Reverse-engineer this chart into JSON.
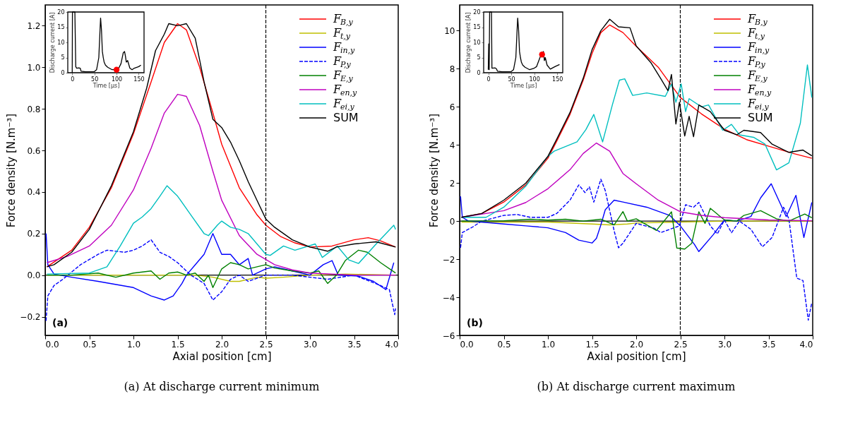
{
  "chart_data": [
    {
      "type": "line",
      "title": "(a) At discharge current minimum",
      "xlabel": "Axial position [cm]",
      "ylabel": "Force density [N.m⁻³]",
      "annotations": [
        "(a)"
      ],
      "legend": "top right",
      "xlim": [
        0,
        4
      ],
      "ylim": [
        -0.29,
        1.3
      ],
      "xticks": [
        {
          "value": 0,
          "label": "0.0"
        },
        0.5,
        {
          "value": 1,
          "label": "1.0"
        },
        1.5,
        {
          "value": 2,
          "label": "2.0"
        },
        2.5,
        {
          "value": 3,
          "label": "3.0"
        },
        3.5,
        {
          "value": 4,
          "label": "4.0"
        }
      ],
      "yticks": [
        {
          "value": -0.2,
          "label": "−0.2"
        },
        {
          "value": 0,
          "label": "0.0"
        },
        0.2,
        0.4,
        0.6,
        0.8,
        {
          "value": 1,
          "label": "1.0"
        },
        1.2
      ],
      "ref_lines": [
        {
          "axis": "x",
          "value": 2.5,
          "color": "#000000",
          "line_style": "dashed"
        },
        {
          "axis": "y",
          "value": 0,
          "color": "#000000"
        }
      ],
      "series": [
        {
          "name": "F$_{B,y}$",
          "color": "#ff0000",
          "x": [
            0.02,
            0.3,
            0.5,
            0.75,
            1.0,
            1.2,
            1.35,
            1.5,
            1.6,
            1.75,
            1.9,
            2.0,
            2.2,
            2.4,
            2.5,
            2.67,
            2.83,
            3.0,
            3.25,
            3.5,
            3.66,
            3.8,
            3.97
          ],
          "values": [
            0.04,
            0.12,
            0.23,
            0.42,
            0.68,
            0.93,
            1.12,
            1.21,
            1.18,
            1.0,
            0.78,
            0.63,
            0.42,
            0.29,
            0.24,
            0.185,
            0.155,
            0.135,
            0.14,
            0.17,
            0.18,
            0.165,
            0.135
          ]
        },
        {
          "name": "F$_{t,y}$",
          "color": "#bfbf00",
          "x": [
            0.02,
            0.5,
            1.0,
            1.5,
            1.7,
            1.9,
            2.1,
            2.2,
            2.4,
            2.5,
            2.7,
            3.0,
            3.4,
            3.97
          ],
          "values": [
            0.0,
            0.0,
            0.0,
            0.0,
            0.0,
            -0.01,
            -0.03,
            -0.03,
            -0.01,
            -0.015,
            -0.01,
            0.0,
            0.005,
            0.0
          ]
        },
        {
          "name": "F$_{in,y}$",
          "color": "#0000ff",
          "x": [
            0.01,
            0.03,
            0.1,
            0.3,
            0.6,
            1.0,
            1.2,
            1.35,
            1.45,
            1.55,
            1.6,
            1.7,
            1.8,
            1.9,
            1.95,
            2.0,
            2.1,
            2.2,
            2.3,
            2.35,
            2.5,
            2.6,
            2.8,
            3.0,
            3.15,
            3.25,
            3.32,
            3.55,
            3.72,
            3.86,
            3.95
          ],
          "values": [
            0.2,
            0.05,
            0.005,
            -0.01,
            -0.03,
            -0.06,
            -0.1,
            -0.12,
            -0.1,
            -0.04,
            0.0,
            0.05,
            0.1,
            0.2,
            0.15,
            0.1,
            0.1,
            0.05,
            0.08,
            0.0,
            0.03,
            0.04,
            0.02,
            0.0,
            0.05,
            0.07,
            0.0,
            -0.005,
            -0.03,
            -0.07,
            0.06
          ]
        },
        {
          "name": "F$_{P,y}$",
          "color": "#0000ff",
          "line_style": "dashed",
          "x": [
            0.01,
            0.03,
            0.1,
            0.2,
            0.4,
            0.6,
            0.7,
            0.9,
            1.0,
            1.1,
            1.2,
            1.3,
            1.4,
            1.5,
            1.65,
            1.8,
            1.9,
            2.0,
            2.1,
            2.2,
            2.3,
            2.5,
            2.8,
            3.0,
            3.2,
            3.5,
            3.8,
            3.9,
            3.94,
            3.96,
            3.97
          ],
          "values": [
            -0.22,
            -0.1,
            -0.05,
            -0.02,
            0.05,
            0.1,
            0.12,
            0.11,
            0.12,
            0.14,
            0.17,
            0.11,
            0.09,
            0.06,
            0.0,
            -0.04,
            -0.12,
            -0.08,
            -0.02,
            0.0,
            -0.03,
            0.0,
            0.0,
            -0.01,
            -0.02,
            0.0,
            -0.05,
            -0.07,
            -0.15,
            -0.19,
            -0.16
          ]
        },
        {
          "name": "F$_{E,y}$",
          "color": "#008000",
          "x": [
            0.02,
            0.3,
            0.6,
            0.8,
            1.0,
            1.2,
            1.3,
            1.4,
            1.5,
            1.6,
            1.7,
            1.8,
            1.85,
            1.9,
            2.0,
            2.1,
            2.2,
            2.3,
            2.5,
            2.6,
            2.8,
            3.0,
            3.1,
            3.2,
            3.3,
            3.4,
            3.55,
            3.65,
            3.8,
            3.97
          ],
          "values": [
            0.0,
            0.0,
            0.01,
            -0.01,
            0.01,
            0.02,
            -0.02,
            0.01,
            0.015,
            0.0,
            0.01,
            -0.03,
            0.0,
            -0.06,
            0.03,
            0.06,
            0.05,
            0.03,
            0.05,
            0.034,
            0.02,
            0.01,
            0.02,
            -0.04,
            0.0,
            0.07,
            0.12,
            0.11,
            0.06,
            0.01
          ]
        },
        {
          "name": "F$_{en,y}$",
          "color": "#bf00bf",
          "x": [
            0.02,
            0.25,
            0.5,
            0.75,
            1.0,
            1.2,
            1.35,
            1.5,
            1.6,
            1.75,
            1.9,
            2.0,
            2.2,
            2.4,
            2.6,
            2.8,
            3.0,
            3.5,
            3.97
          ],
          "values": [
            0.06,
            0.09,
            0.14,
            0.24,
            0.41,
            0.61,
            0.78,
            0.87,
            0.86,
            0.72,
            0.5,
            0.36,
            0.19,
            0.1,
            0.05,
            0.025,
            0.01,
            0.0,
            0.0
          ]
        },
        {
          "name": "F$_{ei,y}$",
          "color": "#00bfbf",
          "x": [
            0.02,
            0.5,
            0.7,
            0.85,
            1.0,
            1.1,
            1.2,
            1.3,
            1.38,
            1.5,
            1.65,
            1.8,
            1.85,
            1.95,
            2.0,
            2.1,
            2.2,
            2.3,
            2.5,
            2.55,
            2.7,
            2.83,
            3.06,
            3.14,
            3.31,
            3.44,
            3.55,
            3.75,
            3.95,
            3.97
          ],
          "values": [
            0.005,
            0.01,
            0.04,
            0.14,
            0.25,
            0.28,
            0.32,
            0.38,
            0.43,
            0.38,
            0.29,
            0.2,
            0.19,
            0.24,
            0.26,
            0.23,
            0.22,
            0.2,
            0.1,
            0.095,
            0.14,
            0.12,
            0.15,
            0.085,
            0.14,
            0.073,
            0.056,
            0.15,
            0.24,
            0.22
          ]
        },
        {
          "name": "SUM",
          "color": "#000000",
          "x": [
            0.02,
            0.1,
            0.3,
            0.5,
            0.75,
            1.0,
            1.15,
            1.25,
            1.35,
            1.4,
            1.5,
            1.6,
            1.7,
            1.8,
            1.9,
            2.0,
            2.1,
            2.2,
            2.3,
            2.4,
            2.5,
            2.6,
            2.8,
            3.0,
            3.2,
            3.3,
            3.5,
            3.75,
            3.97
          ],
          "values": [
            0.04,
            0.05,
            0.11,
            0.22,
            0.43,
            0.69,
            0.9,
            1.08,
            1.16,
            1.21,
            1.2,
            1.21,
            1.14,
            0.93,
            0.75,
            0.71,
            0.64,
            0.55,
            0.45,
            0.36,
            0.27,
            0.23,
            0.17,
            0.135,
            0.115,
            0.135,
            0.15,
            0.16,
            0.135
          ]
        }
      ]
    },
    {
      "type": "line",
      "xlabel": "Time [μs]",
      "ylabel": "Discharge current [A]",
      "xlim": [
        -10,
        162
      ],
      "ylim": [
        0,
        20
      ],
      "xticks": [
        0,
        50,
        100,
        150
      ],
      "yticks": [
        0,
        5,
        10,
        15,
        20
      ],
      "series": [
        {
          "type": "line",
          "color": "#000000",
          "x": [
            0,
            0.5,
            6,
            8,
            10,
            15,
            18,
            20,
            30,
            50,
            55,
            60,
            63,
            64,
            66,
            68,
            70,
            72,
            75,
            80,
            90,
            100,
            105,
            110,
            115,
            118,
            120,
            122,
            125,
            130,
            135,
            140,
            150,
            155
          ],
          "values": [
            0,
            20,
            20,
            2,
            1.5,
            1.6,
            1.5,
            0.5,
            0.3,
            0.4,
            1.0,
            5,
            15,
            18,
            14,
            7,
            5,
            3.5,
            2.5,
            1.8,
            1.0,
            1.0,
            1.5,
            3,
            6.5,
            7,
            5.5,
            3.5,
            4,
            1.5,
            1.0,
            1.5,
            2,
            2.5
          ]
        },
        {
          "type": "scatter",
          "color": "#ff0000",
          "x": [
            100
          ],
          "values": [
            1.0
          ]
        }
      ]
    },
    {
      "type": "line",
      "title": "(b) At discharge current maximum",
      "xlabel": "Axial position [cm]",
      "ylabel": "Force density [N.m⁻³]",
      "annotations": [
        "(b)"
      ],
      "legend": "top right",
      "xlim": [
        0,
        4
      ],
      "ylim": [
        -6,
        11.35
      ],
      "xticks": [
        {
          "value": 0,
          "label": "0.0"
        },
        0.5,
        {
          "value": 1,
          "label": "1.0"
        },
        1.5,
        {
          "value": 2,
          "label": "2.0"
        },
        2.5,
        {
          "value": 3,
          "label": "3.0"
        },
        3.5,
        {
          "value": 4,
          "label": "4.0"
        }
      ],
      "yticks": [
        {
          "value": -6,
          "label": "−6"
        },
        {
          "value": -4,
          "label": "−4"
        },
        {
          "value": -2,
          "label": "−2"
        },
        0,
        2,
        4,
        6,
        8,
        10
      ],
      "ref_lines": [
        {
          "axis": "x",
          "value": 2.5,
          "color": "#000000",
          "line_style": "dashed"
        },
        {
          "axis": "y",
          "value": 0,
          "color": "#000000"
        }
      ],
      "series": [
        {
          "name": "F$_{B,y}$",
          "color": "#ff0000",
          "x": [
            0.02,
            0.25,
            0.5,
            0.75,
            1.0,
            1.1,
            1.25,
            1.4,
            1.5,
            1.6,
            1.7,
            1.85,
            2.0,
            2.25,
            2.5,
            2.74,
            3.0,
            3.25,
            3.51,
            3.78,
            3.99
          ],
          "values": [
            0.2,
            0.4,
            1.0,
            1.9,
            3.3,
            4.2,
            5.6,
            7.4,
            8.8,
            9.9,
            10.3,
            9.9,
            9.18,
            8.08,
            6.49,
            5.63,
            4.83,
            4.28,
            3.92,
            3.55,
            3.3
          ]
        },
        {
          "name": "F$_{t,y}$",
          "color": "#bfbf00",
          "x": [
            0.02,
            0.5,
            1.0,
            1.5,
            1.7,
            1.9,
            2.0,
            2.5,
            3.0,
            3.99
          ],
          "values": [
            -0.05,
            -0.05,
            -0.05,
            -0.15,
            -0.2,
            -0.15,
            -0.1,
            -0.05,
            0.0,
            0.0
          ]
        },
        {
          "name": "F$_{in,y}$",
          "color": "#0000ff",
          "x": [
            0.01,
            0.03,
            0.1,
            0.25,
            0.5,
            0.75,
            1.0,
            1.2,
            1.35,
            1.5,
            1.55,
            1.6,
            1.65,
            1.75,
            1.85,
            2.12,
            2.38,
            2.5,
            2.66,
            2.71,
            2.87,
            3.0,
            3.14,
            3.3,
            3.41,
            3.53,
            3.59,
            3.7,
            3.81,
            3.9,
            3.99
          ],
          "values": [
            1.3,
            0.2,
            0.0,
            -0.05,
            -0.15,
            -0.25,
            -0.35,
            -0.6,
            -1.0,
            -1.15,
            -0.9,
            -0.2,
            0.6,
            1.1,
            1.0,
            0.73,
            0.3,
            -0.25,
            -1.22,
            -1.6,
            -0.73,
            0.06,
            0.0,
            0.24,
            1.22,
            1.96,
            1.35,
            0.24,
            1.35,
            -0.86,
            0.98
          ]
        },
        {
          "name": "F$_{P,y}$",
          "color": "#0000ff",
          "line_style": "dashed",
          "x": [
            0.01,
            0.03,
            0.15,
            0.25,
            0.5,
            0.65,
            0.8,
            1.0,
            1.1,
            1.25,
            1.35,
            1.42,
            1.47,
            1.52,
            1.6,
            1.65,
            1.75,
            1.8,
            1.85,
            2.0,
            2.2,
            2.28,
            2.49,
            2.56,
            2.65,
            2.71,
            2.84,
            2.92,
            3.0,
            3.08,
            3.17,
            3.3,
            3.43,
            3.54,
            3.67,
            3.73,
            3.82,
            3.89,
            3.95,
            3.99
          ],
          "values": [
            -1.4,
            -0.6,
            -0.3,
            0.0,
            0.3,
            0.35,
            0.2,
            0.2,
            0.4,
            1.1,
            1.9,
            1.5,
            1.8,
            1.0,
            2.2,
            1.6,
            -0.5,
            -1.4,
            -1.16,
            -0.12,
            -0.37,
            -0.6,
            -0.25,
            0.86,
            0.73,
            0.98,
            -0.25,
            -0.67,
            0.06,
            -0.61,
            0.0,
            -0.43,
            -1.35,
            -0.86,
            0.73,
            0.12,
            -3.0,
            -3.12,
            -5.2,
            -4.28
          ]
        },
        {
          "name": "F$_{E,y}$",
          "color": "#008000",
          "x": [
            0.02,
            0.5,
            0.8,
            1.0,
            1.2,
            1.4,
            1.6,
            1.75,
            1.85,
            1.9,
            2.0,
            2.23,
            2.4,
            2.46,
            2.55,
            2.63,
            2.71,
            2.78,
            2.84,
            3.0,
            3.14,
            3.22,
            3.41,
            3.59,
            3.73,
            3.91,
            3.99
          ],
          "values": [
            0.0,
            0.02,
            0.1,
            0.05,
            0.1,
            0.0,
            0.1,
            -0.2,
            0.5,
            0.0,
            0.12,
            -0.49,
            0.49,
            -1.41,
            -1.47,
            -1.16,
            0.49,
            -0.12,
            0.67,
            0.06,
            0.0,
            0.3,
            0.55,
            0.12,
            0.0,
            0.37,
            0.18
          ]
        },
        {
          "name": "F$_{en,y}$",
          "color": "#bf00bf",
          "x": [
            0.02,
            0.5,
            0.75,
            1.0,
            1.25,
            1.4,
            1.55,
            1.7,
            1.85,
            2.0,
            2.25,
            2.5,
            2.74,
            3.0,
            3.5,
            3.99
          ],
          "values": [
            0.2,
            0.55,
            0.98,
            1.7,
            2.7,
            3.55,
            4.1,
            3.67,
            2.5,
            1.96,
            1.1,
            0.49,
            0.3,
            0.18,
            0.06,
            0.02
          ]
        },
        {
          "name": "F$_{ei,y}$",
          "color": "#00bfbf",
          "x": [
            0.02,
            0.3,
            0.5,
            0.75,
            1.0,
            1.07,
            1.33,
            1.43,
            1.52,
            1.62,
            1.73,
            1.81,
            1.87,
            1.96,
            2.12,
            2.33,
            2.4,
            2.45,
            2.51,
            2.56,
            2.6,
            2.74,
            2.82,
            2.98,
            3.08,
            3.17,
            3.33,
            3.46,
            3.59,
            3.73,
            3.86,
            3.94,
            3.99
          ],
          "values": [
            0.2,
            0.2,
            0.73,
            1.84,
            3.4,
            3.67,
            4.16,
            4.8,
            5.6,
            4.16,
            6.1,
            7.4,
            7.47,
            6.6,
            6.73,
            6.55,
            7.2,
            6.24,
            7.2,
            5.75,
            6.43,
            6.0,
            6.1,
            4.77,
            5.08,
            4.53,
            4.4,
            4.04,
            2.69,
            3.06,
            5.14,
            8.2,
            6.49
          ]
        },
        {
          "name": "SUM",
          "color": "#000000",
          "x": [
            0.02,
            0.25,
            0.5,
            0.75,
            1.0,
            1.1,
            1.25,
            1.4,
            1.5,
            1.6,
            1.7,
            1.8,
            1.93,
            2.0,
            2.17,
            2.28,
            2.36,
            2.4,
            2.45,
            2.49,
            2.55,
            2.6,
            2.65,
            2.71,
            2.84,
            3.0,
            3.14,
            3.22,
            3.41,
            3.54,
            3.73,
            3.89,
            3.99
          ],
          "values": [
            0.2,
            0.4,
            1.1,
            2.0,
            3.4,
            4.3,
            5.7,
            7.5,
            9.0,
            10.0,
            10.6,
            10.2,
            10.15,
            9.2,
            8.3,
            7.47,
            6.85,
            7.7,
            5.1,
            6.24,
            4.47,
            5.5,
            4.43,
            6.1,
            5.75,
            4.77,
            4.53,
            4.77,
            4.65,
            4.04,
            3.61,
            3.73,
            3.43
          ]
        }
      ]
    },
    {
      "type": "line",
      "xlabel": "Time [μs]",
      "ylabel": "Discharge current [A]",
      "xlim": [
        -10,
        162
      ],
      "ylim": [
        0,
        20
      ],
      "xticks": [
        0,
        50,
        100,
        150
      ],
      "yticks": [
        0,
        5,
        10,
        15,
        20
      ],
      "series": [
        {
          "type": "line",
          "color": "#000000",
          "x": [
            0,
            1,
            2,
            3,
            7,
            8,
            15,
            18,
            20,
            30,
            50,
            55,
            60,
            63,
            64,
            66,
            68,
            70,
            72,
            75,
            80,
            90,
            100,
            105,
            110,
            115,
            117,
            120,
            122,
            124,
            128,
            135,
            145,
            155
          ],
          "values": [
            1,
            9.5,
            1,
            20,
            20,
            1.5,
            1.6,
            1.2,
            0.5,
            0.3,
            0.4,
            1.0,
            5,
            15,
            18,
            14,
            7,
            5,
            3.5,
            2.5,
            1.8,
            1.0,
            1.5,
            2,
            4,
            6,
            6.5,
            7,
            4,
            5,
            2.5,
            1.2,
            2,
            2.7
          ]
        },
        {
          "type": "scatter",
          "color": "#ff0000",
          "x": [
            117
          ],
          "values": [
            6
          ]
        }
      ]
    }
  ]
}
